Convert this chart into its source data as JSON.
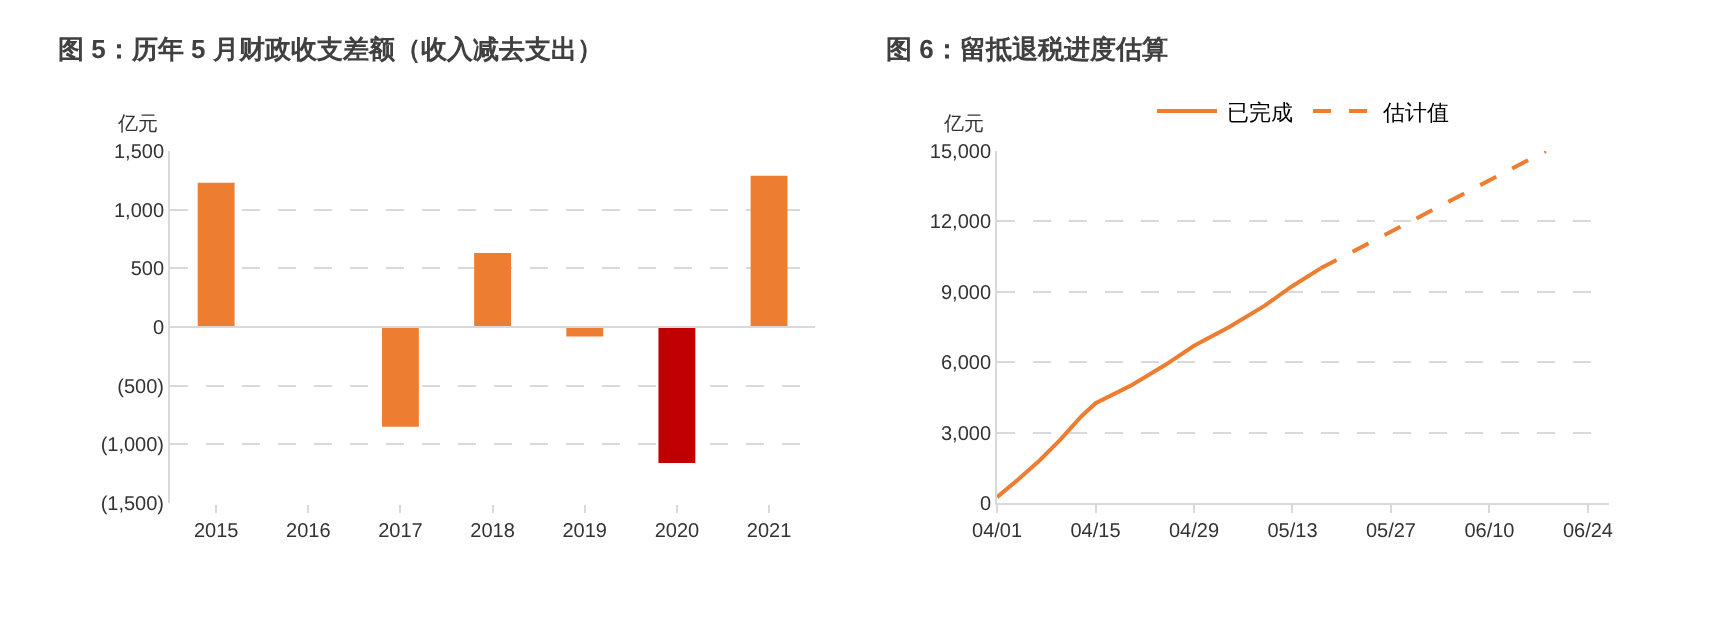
{
  "chart_data": [
    {
      "type": "bar",
      "title": "图 5：历年 5 月财政收支差额（收入减去支出）",
      "ylabel": "亿元",
      "categories": [
        "2015",
        "2016",
        "2017",
        "2018",
        "2019",
        "2020",
        "2021"
      ],
      "values": [
        1230,
        null,
        -850,
        630,
        -80,
        -1160,
        1290
      ],
      "colors": [
        "#ed7d31",
        "#ed7d31",
        "#ed7d31",
        "#ed7d31",
        "#ed7d31",
        "#c00000",
        "#ed7d31"
      ],
      "ylim": [
        -1500,
        1500
      ],
      "yticks": [
        {
          "value": -1500,
          "label": "(1,500)"
        },
        {
          "value": -1000,
          "label": "(1,000)"
        },
        {
          "value": -500,
          "label": "(500)"
        },
        0,
        {
          "value": 500,
          "label": "500"
        },
        {
          "value": 1000,
          "label": "1,000"
        },
        {
          "value": 1500,
          "label": "1,500"
        }
      ],
      "grid": "y"
    },
    {
      "type": "line",
      "title": "图 6：留抵退税进度估算",
      "ylabel": "亿元",
      "legend": "top",
      "series": [
        {
          "name": "已完成",
          "color": "#ed7d31",
          "line_style": "solid",
          "x": [
            "--04-01",
            "--04-04",
            "--04-07",
            "--04-10",
            "--04-13",
            "--04-15",
            "--04-20",
            "--04-25",
            "--04-29",
            "--05-04",
            "--05-09",
            "--05-13",
            "--05-17"
          ],
          "values": [
            250,
            1000,
            1800,
            2700,
            3700,
            4250,
            5000,
            5900,
            6700,
            7500,
            8400,
            9250,
            10000
          ]
        },
        {
          "name": "估计值",
          "color": "#ed7d31",
          "line_style": "dashed",
          "x": [
            "--05-17",
            "--06-18"
          ],
          "values": [
            10000,
            15000
          ]
        }
      ],
      "xlim": [
        "--04-01",
        "--06-27"
      ],
      "xticks": [
        {
          "value": "--04-01",
          "label": "04/01"
        },
        {
          "value": "--04-15",
          "label": "04/15"
        },
        {
          "value": "--04-29",
          "label": "04/29"
        },
        {
          "value": "--05-13",
          "label": "05/13"
        },
        {
          "value": "--05-27",
          "label": "05/27"
        },
        {
          "value": "--06-10",
          "label": "06/10"
        },
        {
          "value": "--06-24",
          "label": "06/24"
        }
      ],
      "ylim": [
        0,
        15000
      ],
      "yticks": [
        0,
        {
          "value": 3000,
          "label": "3,000"
        },
        {
          "value": 6000,
          "label": "6,000"
        },
        {
          "value": 9000,
          "label": "9,000"
        },
        {
          "value": 12000,
          "label": "12,000"
        },
        {
          "value": 15000,
          "label": "15,000"
        }
      ],
      "grid": "y"
    }
  ]
}
